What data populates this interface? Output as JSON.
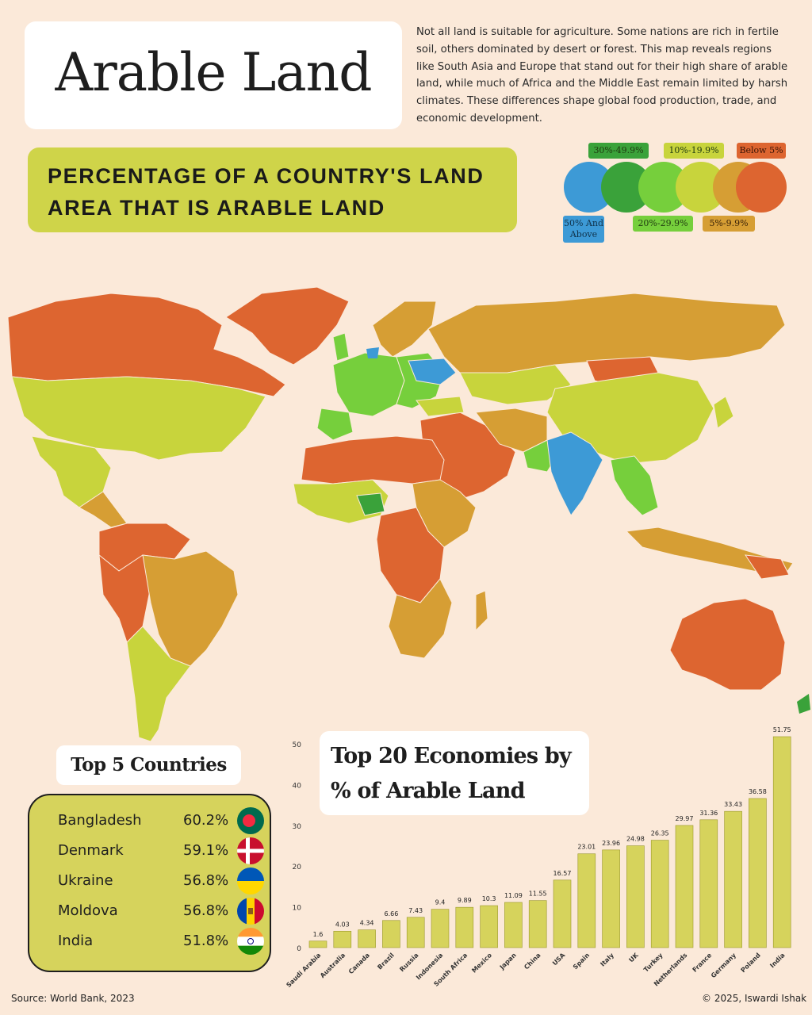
{
  "title": "Arable Land",
  "intro": "Not all land is suitable for agriculture. Some nations are rich in fertile soil, others dominated by desert or forest. This map reveals regions like South Asia and Europe that stand out for their high share of arable land, while much of Africa and the Middle East remain limited by harsh climates. These differences shape global food production, trade, and economic development.",
  "subtitle": "PERCENTAGE OF A COUNTRY'S LAND AREA THAT IS ARABLE LAND",
  "legend": [
    {
      "label": "50% And Above",
      "color": "#3d9ad6"
    },
    {
      "label": "30%-49.9%",
      "color": "#3aa23a"
    },
    {
      "label": "20%-29.9%",
      "color": "#76cf3c"
    },
    {
      "label": "10%-19.9%",
      "color": "#c8d43c"
    },
    {
      "label": "5%-9.9%",
      "color": "#d69e34"
    },
    {
      "label": "Below 5%",
      "color": "#dd6530"
    }
  ],
  "top5": {
    "title": "Top 5 Countries",
    "rows": [
      {
        "name": "Bangladesh",
        "value": "60.2%",
        "flag": "bangladesh-flag"
      },
      {
        "name": "Denmark",
        "value": "59.1%",
        "flag": "denmark-flag"
      },
      {
        "name": "Ukraine",
        "value": "56.8%",
        "flag": "ukraine-flag"
      },
      {
        "name": "Moldova",
        "value": "56.8%",
        "flag": "moldova-flag"
      },
      {
        "name": "India",
        "value": "51.8%",
        "flag": "india-flag"
      }
    ]
  },
  "chart_title": {
    "line1": "Top 20 Economies by",
    "line2": "% of Arable Land"
  },
  "chart_data": {
    "type": "bar",
    "categories": [
      "Saudi Arabia",
      "Australia",
      "Canada",
      "Brazil",
      "Russia",
      "Indonesia",
      "South Africa",
      "Mexico",
      "Japan",
      "China",
      "USA",
      "Spain",
      "Italy",
      "UK",
      "Turkey",
      "Netherlands",
      "France",
      "Germany",
      "Poland",
      "India"
    ],
    "values": [
      1.6,
      4.03,
      4.34,
      6.66,
      7.43,
      9.4,
      9.89,
      10.3,
      11.09,
      11.55,
      16.57,
      23.01,
      23.96,
      24.98,
      26.35,
      29.97,
      31.36,
      33.43,
      36.58,
      51.75
    ],
    "value_labels": [
      "1.6",
      "4.03",
      "4.34",
      "6.66",
      "7.43",
      "9.4",
      "9.89",
      "10.3",
      "11.09",
      "11.55",
      "16.57",
      "23.01",
      "23.96",
      "24.98",
      "26.35",
      "29.97",
      "31.36",
      "33.43",
      "36.58",
      "51.75"
    ],
    "yticks": [
      "0",
      "10",
      "20",
      "30",
      "40",
      "50"
    ],
    "ylim": [
      0,
      52
    ],
    "bar_color": "#d6d35c"
  },
  "source": "Source: World Bank, 2023",
  "credit": "© 2025, Iswardi Ishak"
}
